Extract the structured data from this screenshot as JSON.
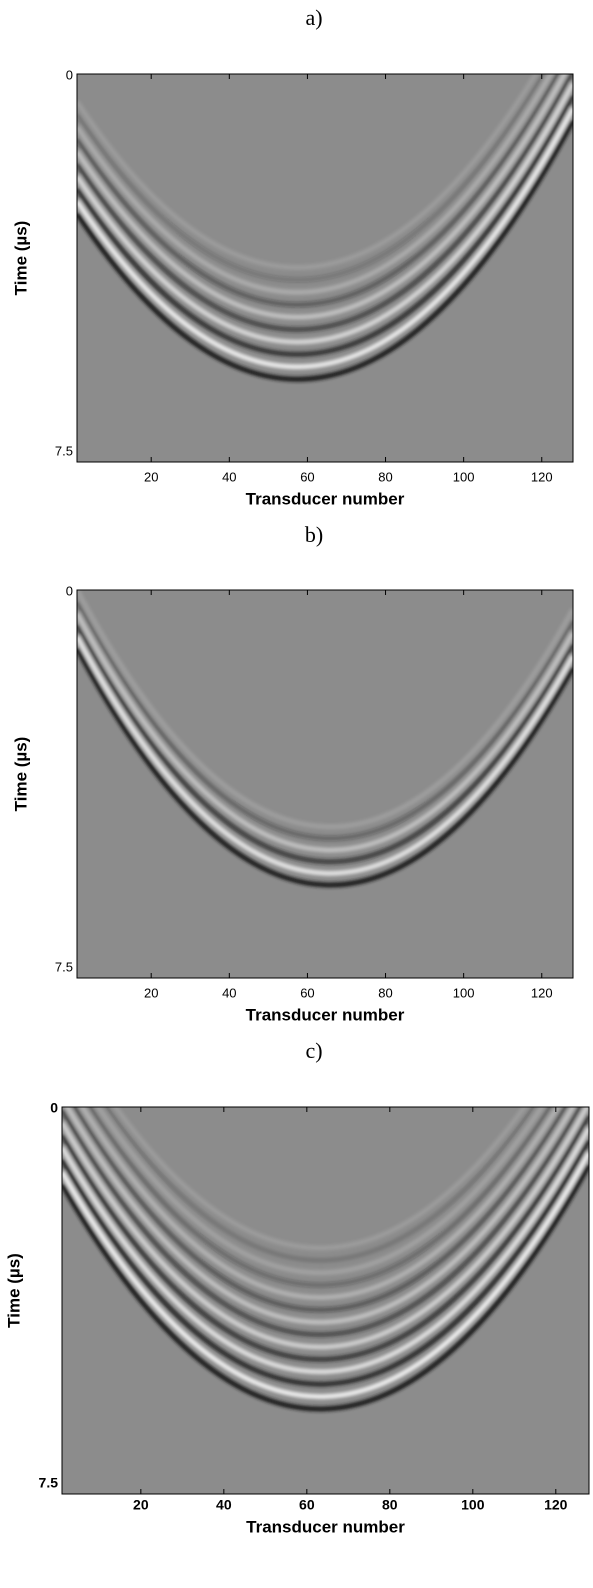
{
  "chart_data": [
    {
      "type": "heatmap",
      "title": "a)",
      "xlabel": "Transducer number",
      "ylabel": "Time (µs)",
      "xlim": [
        1,
        128
      ],
      "xticks": [
        20,
        40,
        60,
        80,
        100,
        120
      ],
      "ylim": [
        0,
        7.5
      ],
      "yticks": [
        0,
        7.5
      ]
    },
    {
      "type": "heatmap",
      "title": "b)",
      "xlabel": "Transducer number",
      "ylabel": "Time (µs)",
      "xlim": [
        1,
        128
      ],
      "xticks": [
        20,
        40,
        60,
        80,
        100,
        120
      ],
      "ylim": [
        0,
        7.5
      ],
      "yticks": [
        0,
        7.5
      ]
    },
    {
      "type": "heatmap",
      "title": "c)",
      "xlabel": "Transducer number",
      "ylabel": "Time (µs)",
      "xlim": [
        1,
        128
      ],
      "xticks": [
        20,
        40,
        60,
        80,
        100,
        120
      ],
      "ylim": [
        0,
        7.5
      ],
      "yticks": [
        0,
        7.5
      ]
    }
  ]
}
